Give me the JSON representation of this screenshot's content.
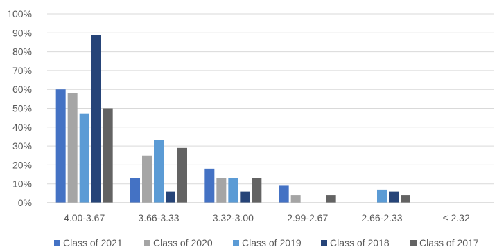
{
  "chart_data": {
    "type": "bar",
    "title": "",
    "xlabel": "",
    "ylabel": "",
    "categories": [
      "4.00-3.67",
      "3.66-3.33",
      "3.32-3.00",
      "2.99-2.67",
      "2.66-2.33",
      "≤ 2.32"
    ],
    "series": [
      {
        "name": "Class of 2021",
        "color": "#4472C4",
        "values": [
          60,
          13,
          18,
          9,
          0,
          0
        ]
      },
      {
        "name": "Class of 2020",
        "color": "#A5A5A5",
        "values": [
          58,
          25,
          13,
          4,
          0,
          0
        ]
      },
      {
        "name": "Class of 2019",
        "color": "#5B9BD5",
        "values": [
          47,
          33,
          13,
          0,
          7,
          0
        ]
      },
      {
        "name": "Class of 2018",
        "color": "#264478",
        "values": [
          89,
          6,
          6,
          0,
          6,
          0
        ]
      },
      {
        "name": "Class of 2017",
        "color": "#636363",
        "values": [
          50,
          29,
          13,
          4,
          4,
          0
        ]
      }
    ],
    "ylim": [
      0,
      100
    ],
    "yticks": [
      "0%",
      "10%",
      "20%",
      "30%",
      "40%",
      "50%",
      "60%",
      "70%",
      "80%",
      "90%",
      "100%"
    ],
    "grid": true,
    "legend_position": "bottom"
  }
}
